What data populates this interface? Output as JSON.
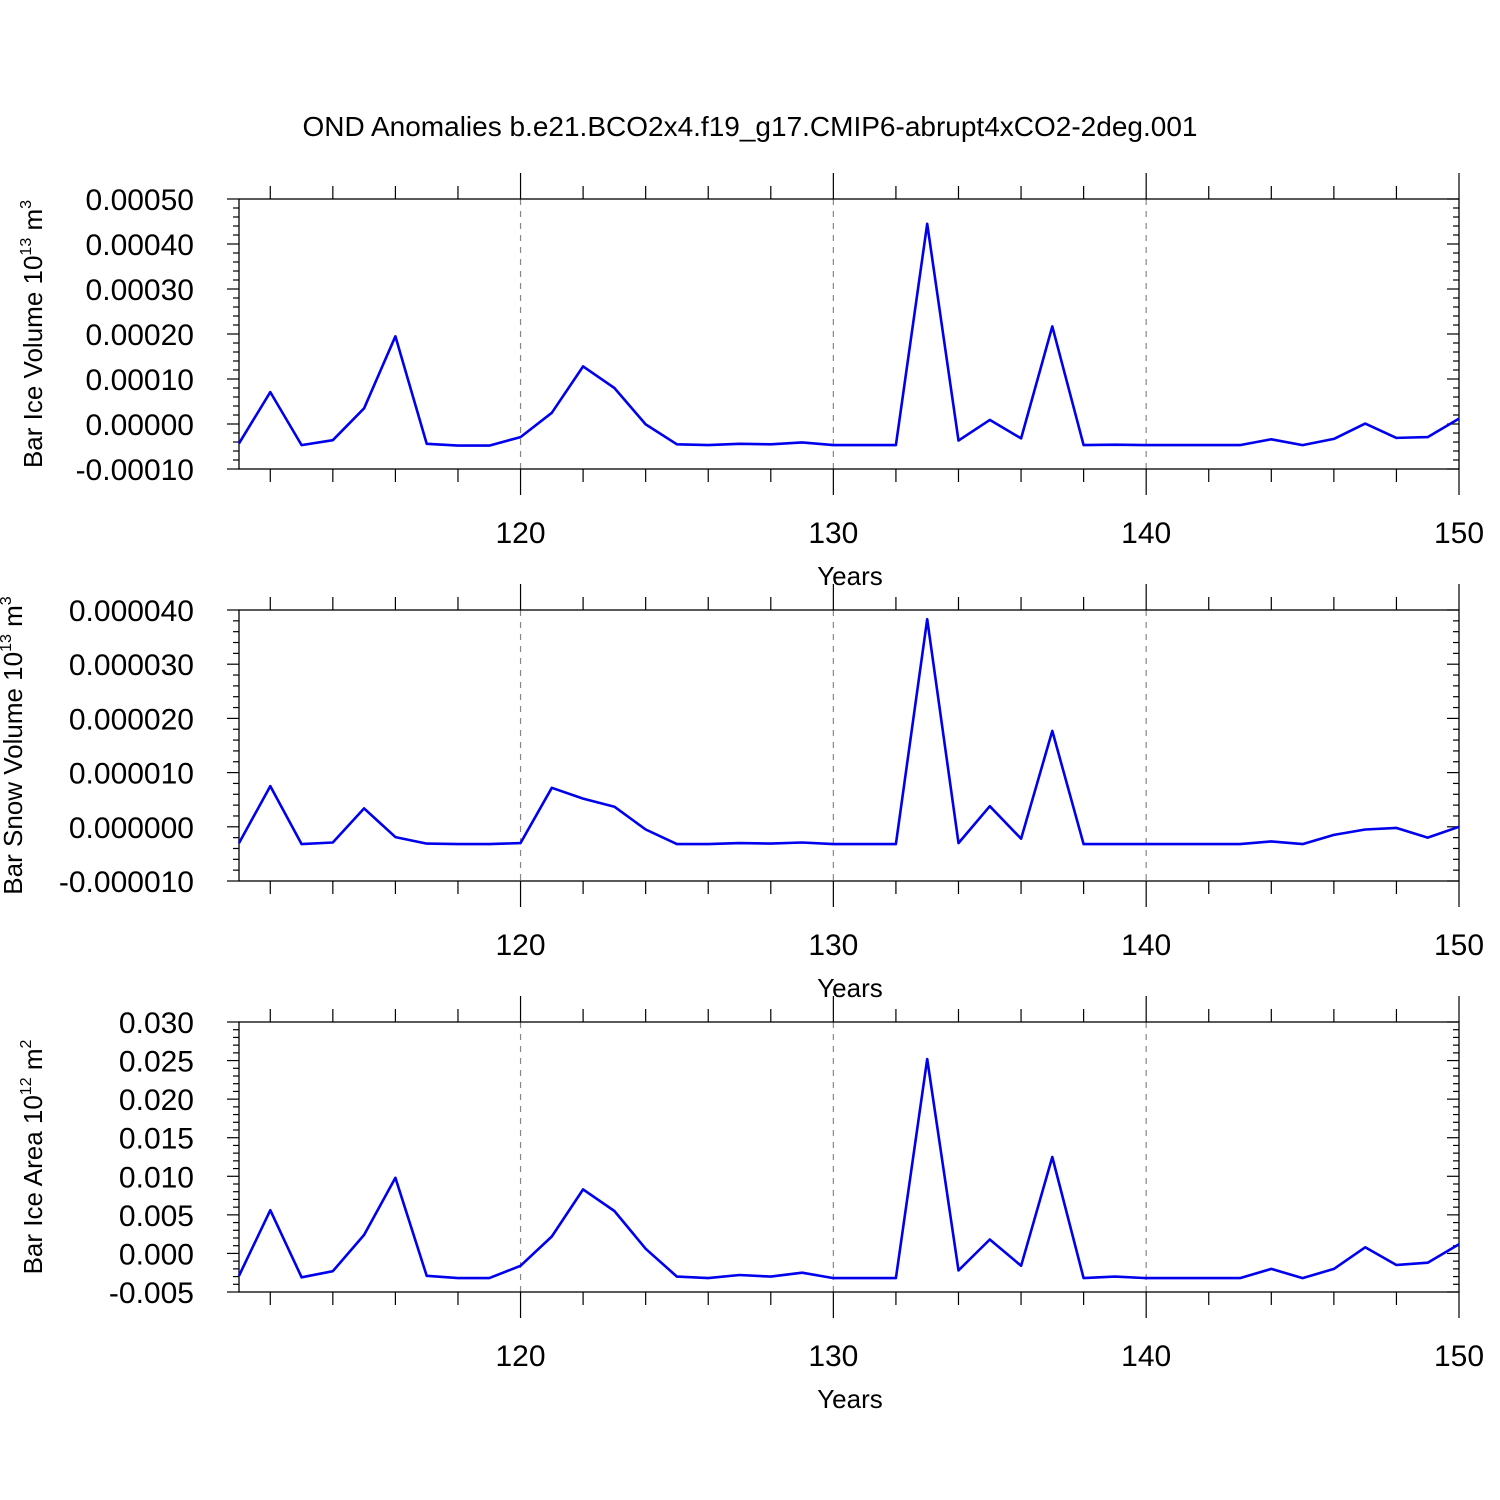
{
  "title": "OND Anomalies b.e21.BCO2x4.f19_g17.CMIP6-abrupt4xCO2-2deg.001",
  "colors": {
    "series": "#0000ee",
    "grid": "#888888"
  },
  "chart_data": [
    {
      "type": "line",
      "xlabel": "Years",
      "ylabel": "Bar Ice Volume 10",
      "ylabel_exp": "13",
      "ylabel_unit": " m",
      "ylabel_unit_exp": "3",
      "xlim": [
        111,
        150
      ],
      "ylim": [
        -0.0001,
        0.0005
      ],
      "xticks": [
        120,
        130,
        140,
        150
      ],
      "yticks": [
        -0.0001,
        0,
        0.0001,
        0.0002,
        0.0003,
        0.0004,
        0.0005
      ],
      "ytick_labels": [
        "-0.00010",
        "0.00000",
        "0.00010",
        "0.00020",
        "0.00030",
        "0.00040",
        "0.00050"
      ],
      "grid_x": [
        120,
        130,
        140
      ],
      "x": [
        111,
        112,
        113,
        114,
        115,
        116,
        117,
        118,
        119,
        120,
        121,
        122,
        123,
        124,
        125,
        126,
        127,
        128,
        129,
        130,
        131,
        132,
        133,
        134,
        135,
        136,
        137,
        138,
        139,
        140,
        141,
        142,
        143,
        144,
        145,
        146,
        147,
        148,
        149,
        150
      ],
      "values": [
        -4.3e-05,
        7.1e-05,
        -4.7e-05,
        -3.6e-05,
        3.5e-05,
        0.000195,
        -4.4e-05,
        -4.8e-05,
        -4.8e-05,
        -2.9e-05,
        2.5e-05,
        0.000128,
        8e-05,
        -1e-06,
        -4.5e-05,
        -4.7e-05,
        -4.4e-05,
        -4.5e-05,
        -4.1e-05,
        -4.7e-05,
        -4.7e-05,
        -4.7e-05,
        0.000445,
        -3.7e-05,
        9e-06,
        -3.2e-05,
        0.000217,
        -4.7e-05,
        -4.6e-05,
        -4.7e-05,
        -4.7e-05,
        -4.7e-05,
        -4.7e-05,
        -3.4e-05,
        -4.7e-05,
        -3.3e-05,
        1e-06,
        -3.1e-05,
        -2.9e-05,
        1.2e-05
      ]
    },
    {
      "type": "line",
      "xlabel": "Years",
      "ylabel": "Bar Snow Volume 10",
      "ylabel_exp": "13",
      "ylabel_unit": " m",
      "ylabel_unit_exp": "3",
      "xlim": [
        111,
        150
      ],
      "ylim": [
        -1e-05,
        4e-05
      ],
      "xticks": [
        120,
        130,
        140,
        150
      ],
      "yticks": [
        -1e-05,
        0,
        1e-05,
        2e-05,
        3e-05,
        4e-05
      ],
      "ytick_labels": [
        "-0.000010",
        "0.000000",
        "0.000010",
        "0.000020",
        "0.000030",
        "0.000040"
      ],
      "grid_x": [
        120,
        130,
        140
      ],
      "x": [
        111,
        112,
        113,
        114,
        115,
        116,
        117,
        118,
        119,
        120,
        121,
        122,
        123,
        124,
        125,
        126,
        127,
        128,
        129,
        130,
        131,
        132,
        133,
        134,
        135,
        136,
        137,
        138,
        139,
        140,
        141,
        142,
        143,
        144,
        145,
        146,
        147,
        148,
        149,
        150
      ],
      "values": [
        -3e-06,
        7.5e-06,
        -3.2e-06,
        -2.9e-06,
        3.4e-06,
        -1.9e-06,
        -3.1e-06,
        -3.2e-06,
        -3.2e-06,
        -3e-06,
        7.2e-06,
        5.2e-06,
        3.7e-06,
        -5e-07,
        -3.2e-06,
        -3.2e-06,
        -3e-06,
        -3.1e-06,
        -2.9e-06,
        -3.2e-06,
        -3.2e-06,
        -3.2e-06,
        3.83e-05,
        -3e-06,
        3.8e-06,
        -2.2e-06,
        1.77e-05,
        -3.2e-06,
        -3.2e-06,
        -3.2e-06,
        -3.2e-06,
        -3.2e-06,
        -3.2e-06,
        -2.7e-06,
        -3.2e-06,
        -1.5e-06,
        -5e-07,
        -2e-07,
        -2e-06,
        0.0
      ]
    },
    {
      "type": "line",
      "xlabel": "Years",
      "ylabel": "Bar Ice Area 10",
      "ylabel_exp": "12",
      "ylabel_unit": " m",
      "ylabel_unit_exp": "2",
      "xlim": [
        111,
        150
      ],
      "ylim": [
        -0.005,
        0.03
      ],
      "xticks": [
        120,
        130,
        140,
        150
      ],
      "yticks": [
        -0.005,
        0,
        0.005,
        0.01,
        0.015,
        0.02,
        0.025,
        0.03
      ],
      "ytick_labels": [
        "-0.005",
        "0.000",
        "0.005",
        "0.010",
        "0.015",
        "0.020",
        "0.025",
        "0.030"
      ],
      "grid_x": [
        120,
        130,
        140
      ],
      "x": [
        111,
        112,
        113,
        114,
        115,
        116,
        117,
        118,
        119,
        120,
        121,
        122,
        123,
        124,
        125,
        126,
        127,
        128,
        129,
        130,
        131,
        132,
        133,
        134,
        135,
        136,
        137,
        138,
        139,
        140,
        141,
        142,
        143,
        144,
        145,
        146,
        147,
        148,
        149,
        150
      ],
      "values": [
        -0.0029,
        0.0056,
        -0.0031,
        -0.0023,
        0.0024,
        0.0098,
        -0.0029,
        -0.0032,
        -0.0032,
        -0.0016,
        0.0022,
        0.0083,
        0.0055,
        0.0006,
        -0.003,
        -0.0032,
        -0.0028,
        -0.003,
        -0.0025,
        -0.0032,
        -0.0032,
        -0.0032,
        0.0252,
        -0.0022,
        0.0018,
        -0.0016,
        0.0125,
        -0.0032,
        -0.003,
        -0.0032,
        -0.0032,
        -0.0032,
        -0.0032,
        -0.002,
        -0.0032,
        -0.002,
        0.0008,
        -0.0015,
        -0.0012,
        0.0012
      ]
    }
  ]
}
